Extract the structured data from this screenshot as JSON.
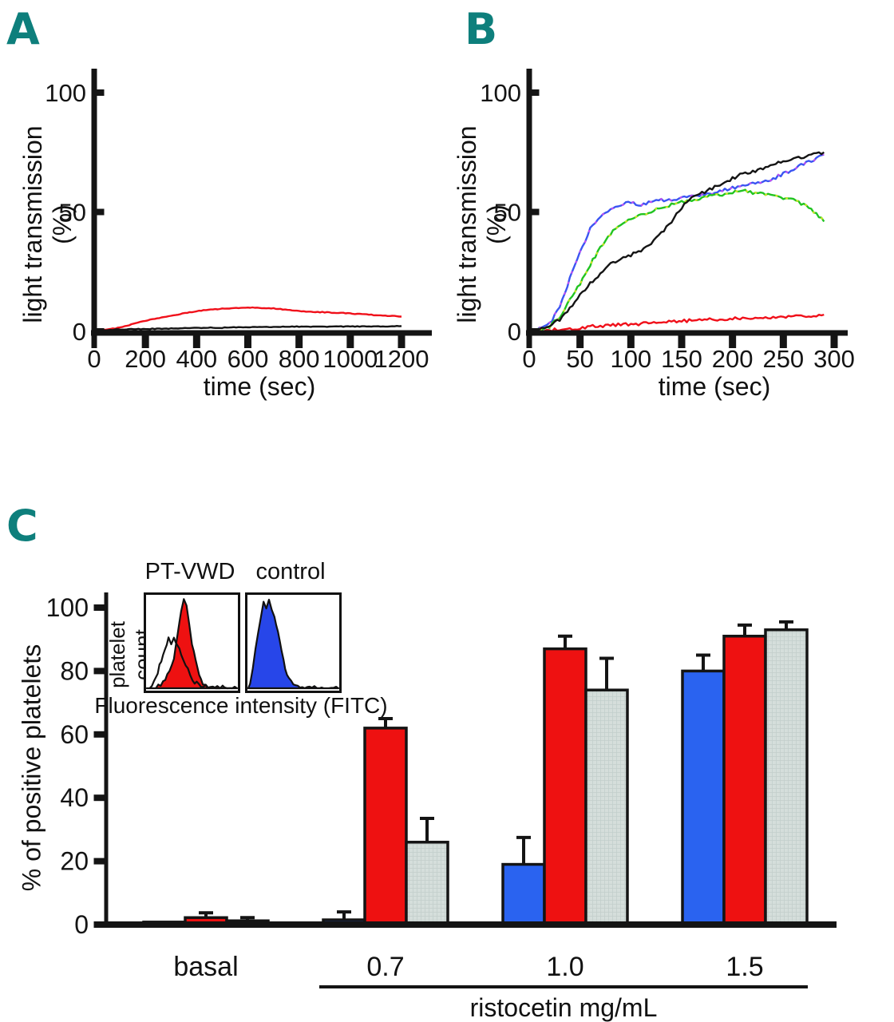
{
  "panels": [
    {
      "id": "A",
      "label": "A"
    },
    {
      "id": "B",
      "label": "B"
    },
    {
      "id": "C",
      "label": "C"
    }
  ],
  "colors": {
    "panel_letter": "#0e7f7c",
    "axis": "#141414",
    "red_series": "#ee1111",
    "blue_bar": "#2a63f0",
    "gray_bar": "#d5dedb",
    "blue_line": "#3b55f2",
    "green_line": "#21c421",
    "black_line": "#141414",
    "red_line": "#f0101a"
  },
  "chart_data": [
    {
      "id": "A",
      "type": "line",
      "xlabel": "time (sec)",
      "ylabel": "light transmission (%)",
      "xlim": [
        0,
        1200
      ],
      "ylim": [
        0,
        110
      ],
      "x_ticks": [
        0,
        200,
        400,
        600,
        800,
        1000,
        1200
      ],
      "y_ticks": [
        0,
        50,
        100
      ],
      "grid": false,
      "legend": "none",
      "noise": 0.3,
      "x_values": [
        0,
        100,
        200,
        300,
        400,
        500,
        600,
        700,
        800,
        900,
        1000,
        1100,
        1200
      ],
      "series": [
        {
          "name": "red",
          "color": "#f0101a",
          "y": [
            0,
            1.5,
            4.5,
            6.5,
            8.5,
            9.5,
            10,
            9.6,
            8.5,
            8,
            7.5,
            6.8,
            6.2
          ]
        },
        {
          "name": "black",
          "color": "#141414",
          "y": [
            0.3,
            0.8,
            1,
            1.2,
            1.5,
            1.5,
            1.8,
            1.8,
            2,
            2,
            2,
            2,
            2.2
          ]
        }
      ]
    },
    {
      "id": "B",
      "type": "line",
      "xlabel": "time (sec)",
      "ylabel": "light transmission (%)",
      "xlim": [
        0,
        300
      ],
      "ylim": [
        0,
        110
      ],
      "x_ticks": [
        0,
        50,
        100,
        150,
        200,
        250,
        300
      ],
      "y_ticks": [
        0,
        50,
        100
      ],
      "grid": false,
      "legend": "none",
      "noise": 1.3,
      "x_values": [
        0,
        10,
        20,
        30,
        40,
        50,
        60,
        70,
        80,
        90,
        100,
        110,
        120,
        130,
        140,
        150,
        160,
        170,
        180,
        190,
        200,
        210,
        220,
        230,
        240,
        250,
        260,
        270,
        280,
        290
      ],
      "series": [
        {
          "name": "blue",
          "color": "#3b55f2",
          "accent": "#c84df0",
          "y": [
            0,
            1,
            3,
            10,
            22,
            33,
            43,
            48,
            51,
            53,
            54,
            53,
            54,
            55,
            55,
            56,
            57,
            57,
            58,
            59,
            60,
            61,
            62,
            63,
            64,
            66,
            68,
            70,
            72,
            74
          ]
        },
        {
          "name": "green",
          "color": "#21c421",
          "accent": "#d6e620",
          "y": [
            0,
            1,
            2,
            6,
            13,
            20,
            28,
            35,
            41,
            45,
            47,
            49,
            50,
            52,
            53,
            54,
            55,
            56,
            57,
            57,
            58,
            59,
            58,
            58,
            57,
            56,
            55,
            53,
            50,
            46
          ]
        },
        {
          "name": "black",
          "color": "#141414",
          "y": [
            0,
            1,
            2,
            5,
            10,
            15,
            20,
            24,
            28,
            30,
            32,
            34,
            37,
            41,
            46,
            52,
            56,
            58,
            60,
            62,
            64,
            66,
            67,
            68,
            70,
            71,
            72,
            73,
            74,
            75
          ]
        },
        {
          "name": "red",
          "color": "#f0101a",
          "y": [
            0,
            0,
            0.5,
            0.8,
            1,
            1.5,
            2,
            2.2,
            2.5,
            2.8,
            3,
            3.2,
            3.5,
            3.8,
            4,
            4.3,
            4.5,
            4.7,
            5,
            5.1,
            5.3,
            5.5,
            5.6,
            5.8,
            6,
            6.2,
            6.4,
            6.5,
            6.7,
            7
          ]
        }
      ]
    },
    {
      "id": "C",
      "type": "bar",
      "xlabel": "ristocetin mg/mL",
      "ylabel": "% of positive platelets",
      "categories": [
        "basal",
        "0.7",
        "1.0",
        "1.5"
      ],
      "y_ticks": [
        0,
        20,
        40,
        60,
        80,
        100
      ],
      "ylim": [
        0,
        105
      ],
      "grid": false,
      "legend": "none",
      "series": [
        {
          "name": "blue",
          "color": "#2a63f0",
          "values": [
            0.8,
            1.5,
            19,
            80
          ],
          "errors": [
            0,
            2.5,
            8.5,
            5
          ]
        },
        {
          "name": "red",
          "color": "#ee1111",
          "values": [
            2.2,
            62,
            87,
            91
          ],
          "errors": [
            1.5,
            3,
            4,
            3.5
          ]
        },
        {
          "name": "gray",
          "color": "#d5dedb",
          "texture": true,
          "values": [
            1.2,
            26,
            74,
            93
          ],
          "errors": [
            1,
            7.5,
            10,
            2.5
          ]
        }
      ],
      "inset": {
        "left_title": "PT-VWD",
        "right_title": "control",
        "ylabel": "platelet count",
        "xlabel": "Fluorescence intensity (FITC)",
        "histograms": [
          {
            "name": "ptvwd-red",
            "fill": "#ee1111",
            "outline": "#111111",
            "points": [
              [
                0.1,
                0
              ],
              [
                0.18,
                0.06
              ],
              [
                0.25,
                0.18
              ],
              [
                0.3,
                0.35
              ],
              [
                0.34,
                0.6
              ],
              [
                0.38,
                0.85
              ],
              [
                0.41,
                1.0
              ],
              [
                0.44,
                0.92
              ],
              [
                0.47,
                0.72
              ],
              [
                0.5,
                0.5
              ],
              [
                0.54,
                0.3
              ],
              [
                0.58,
                0.14
              ],
              [
                0.62,
                0.05
              ],
              [
                0.7,
                0.01
              ],
              [
                1,
                0
              ]
            ]
          },
          {
            "name": "ptvwd-open",
            "fill": "none",
            "outline": "#111111",
            "points": [
              [
                0.03,
                0
              ],
              [
                0.08,
                0.08
              ],
              [
                0.12,
                0.18
              ],
              [
                0.16,
                0.32
              ],
              [
                0.2,
                0.45
              ],
              [
                0.24,
                0.55
              ],
              [
                0.27,
                0.5
              ],
              [
                0.3,
                0.58
              ],
              [
                0.34,
                0.48
              ],
              [
                0.38,
                0.38
              ],
              [
                0.43,
                0.26
              ],
              [
                0.48,
                0.15
              ],
              [
                0.53,
                0.07
              ],
              [
                0.6,
                0.02
              ],
              [
                1,
                0
              ]
            ]
          },
          {
            "name": "control-blue",
            "fill": "#2746e9",
            "outline": "#111111",
            "points": [
              [
                0.02,
                0.05
              ],
              [
                0.05,
                0.2
              ],
              [
                0.08,
                0.45
              ],
              [
                0.11,
                0.6
              ],
              [
                0.14,
                0.8
              ],
              [
                0.17,
                0.95
              ],
              [
                0.2,
                0.88
              ],
              [
                0.23,
                1.0
              ],
              [
                0.26,
                0.9
              ],
              [
                0.29,
                0.8
              ],
              [
                0.33,
                0.62
              ],
              [
                0.37,
                0.42
              ],
              [
                0.41,
                0.22
              ],
              [
                0.45,
                0.1
              ],
              [
                0.5,
                0.03
              ],
              [
                0.6,
                0.01
              ],
              [
                1,
                0
              ]
            ]
          }
        ]
      }
    }
  ]
}
